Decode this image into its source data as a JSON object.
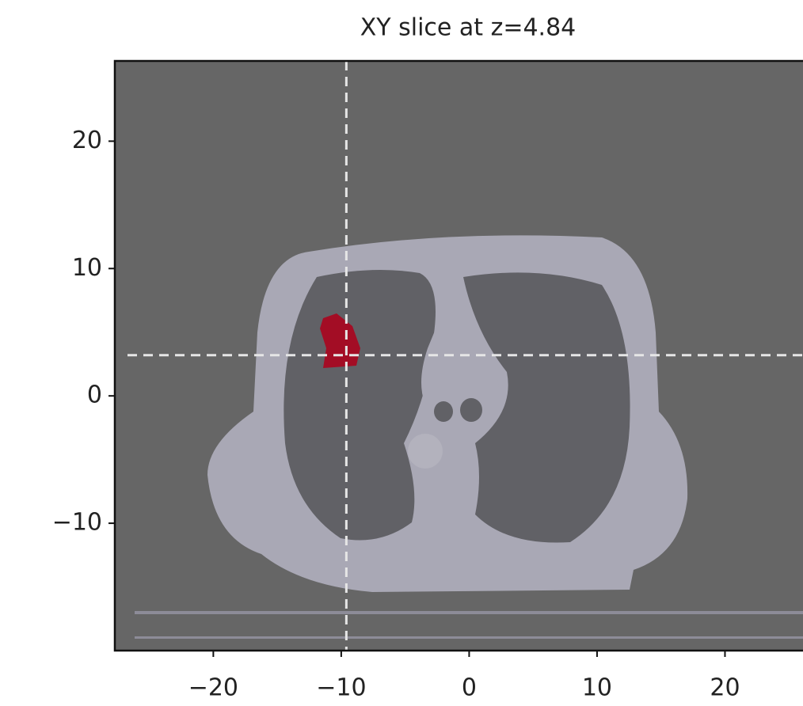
{
  "chart_data": {
    "type": "image",
    "title": "XY slice at z=4.84",
    "xlim": [
      -27.7,
      26.1
    ],
    "ylim": [
      -20,
      26.3
    ],
    "xticks": [
      {
        "value": -20,
        "label": "−20"
      },
      {
        "value": -10,
        "label": "−10"
      },
      0,
      10,
      20
    ],
    "yticks": [
      {
        "value": -10,
        "label": "−10"
      },
      0,
      10,
      20
    ],
    "crosshair": {
      "x": -9.6,
      "y": 3.2,
      "color": "#e6e6e6"
    },
    "background": "#666666"
  }
}
